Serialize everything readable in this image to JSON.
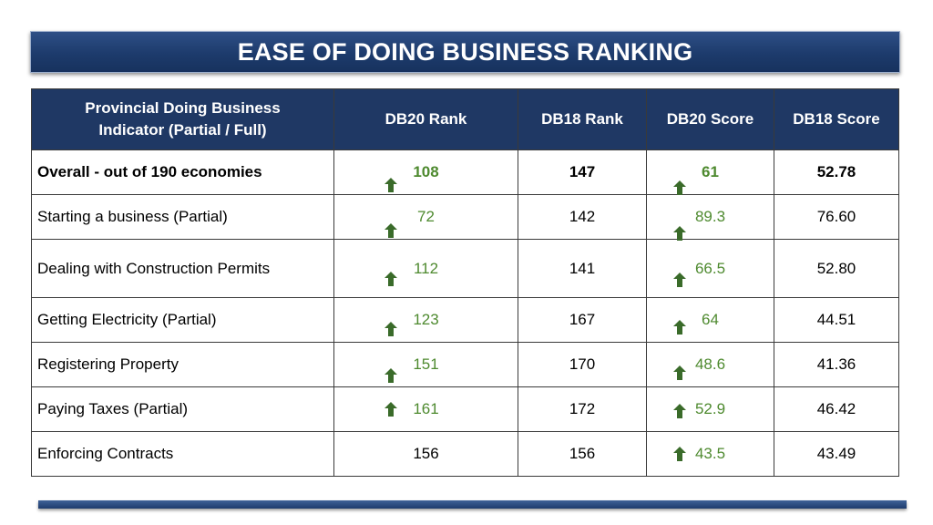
{
  "title": "EASE OF DOING BUSINESS RANKING",
  "colors": {
    "header_bg": "#1f3864",
    "up_arrow": "#3a6b2a",
    "improved_text": "#4e8a2f"
  },
  "table": {
    "headers": {
      "indicator_line1": "Provincial Doing Business",
      "indicator_line2": "Indicator (Partial / Full)",
      "db20_rank": "DB20 Rank",
      "db18_rank": "DB18 Rank",
      "db20_score": "DB20 Score",
      "db18_score": "DB18 Score"
    },
    "rows": [
      {
        "indicator": "Overall - out of 190 economies",
        "db20_rank": "108",
        "db18_rank": "147",
        "db20_score": "61",
        "db18_score": "52.78"
      },
      {
        "indicator": "Starting a business (Partial)",
        "db20_rank": "72",
        "db18_rank": "142",
        "db20_score": "89.3",
        "db18_score": "76.60"
      },
      {
        "indicator": "Dealing with Construction Permits",
        "db20_rank": "112",
        "db18_rank": "141",
        "db20_score": "66.5",
        "db18_score": "52.80"
      },
      {
        "indicator": "Getting Electricity (Partial)",
        "db20_rank": "123",
        "db18_rank": "167",
        "db20_score": "64",
        "db18_score": "44.51"
      },
      {
        "indicator": "Registering Property",
        "db20_rank": "151",
        "db18_rank": "170",
        "db20_score": "48.6",
        "db18_score": "41.36"
      },
      {
        "indicator": "Paying Taxes (Partial)",
        "db20_rank": "161",
        "db18_rank": "172",
        "db20_score": "52.9",
        "db18_score": "46.42"
      },
      {
        "indicator": "Enforcing Contracts",
        "db20_rank": "156",
        "db18_rank": "156",
        "db20_score": "43.5",
        "db18_score": "43.49"
      }
    ],
    "icons": {
      "improvement": "up-arrow-icon"
    }
  }
}
